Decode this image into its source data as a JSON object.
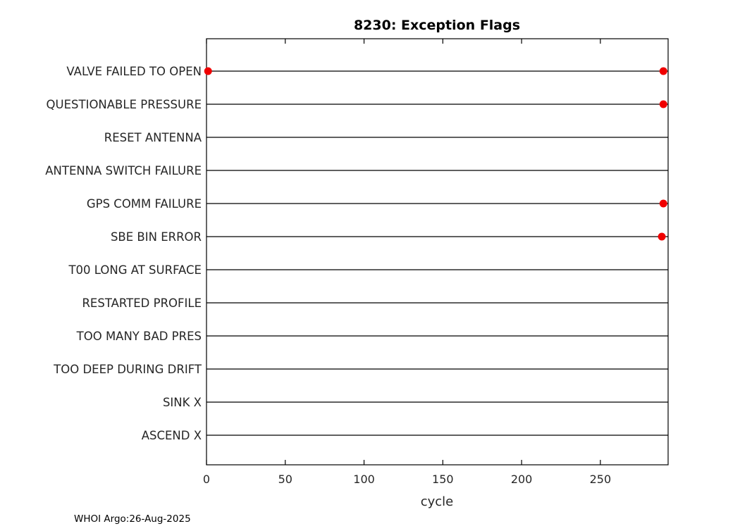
{
  "chart_data": {
    "type": "scatter",
    "title": "8230: Exception Flags",
    "xlabel": "cycle",
    "ylabel": "",
    "xlim": [
      0,
      293
    ],
    "xticks": [
      0,
      50,
      100,
      150,
      200,
      250
    ],
    "grid": false,
    "legend": false,
    "line_color": "#000000",
    "marker_color": "#f00000",
    "categories": [
      "VALVE FAILED TO OPEN",
      "QUESTIONABLE PRESSURE",
      "RESET ANTENNA",
      "ANTENNA SWITCH FAILURE",
      "GPS COMM FAILURE",
      "SBE BIN ERROR",
      "T00 LONG AT SURFACE",
      "RESTARTED PROFILE",
      "TOO MANY BAD PRES",
      "TOO DEEP DURING DRIFT",
      "SINK X",
      "ASCEND X"
    ],
    "points": [
      {
        "category": "VALVE FAILED TO OPEN",
        "x": [
          1,
          290
        ]
      },
      {
        "category": "QUESTIONABLE PRESSURE",
        "x": [
          290
        ]
      },
      {
        "category": "GPS COMM FAILURE",
        "x": [
          290
        ]
      },
      {
        "category": "SBE BIN ERROR",
        "x": [
          289
        ]
      }
    ],
    "annotation": "WHOI Argo:26-Aug-2025"
  }
}
